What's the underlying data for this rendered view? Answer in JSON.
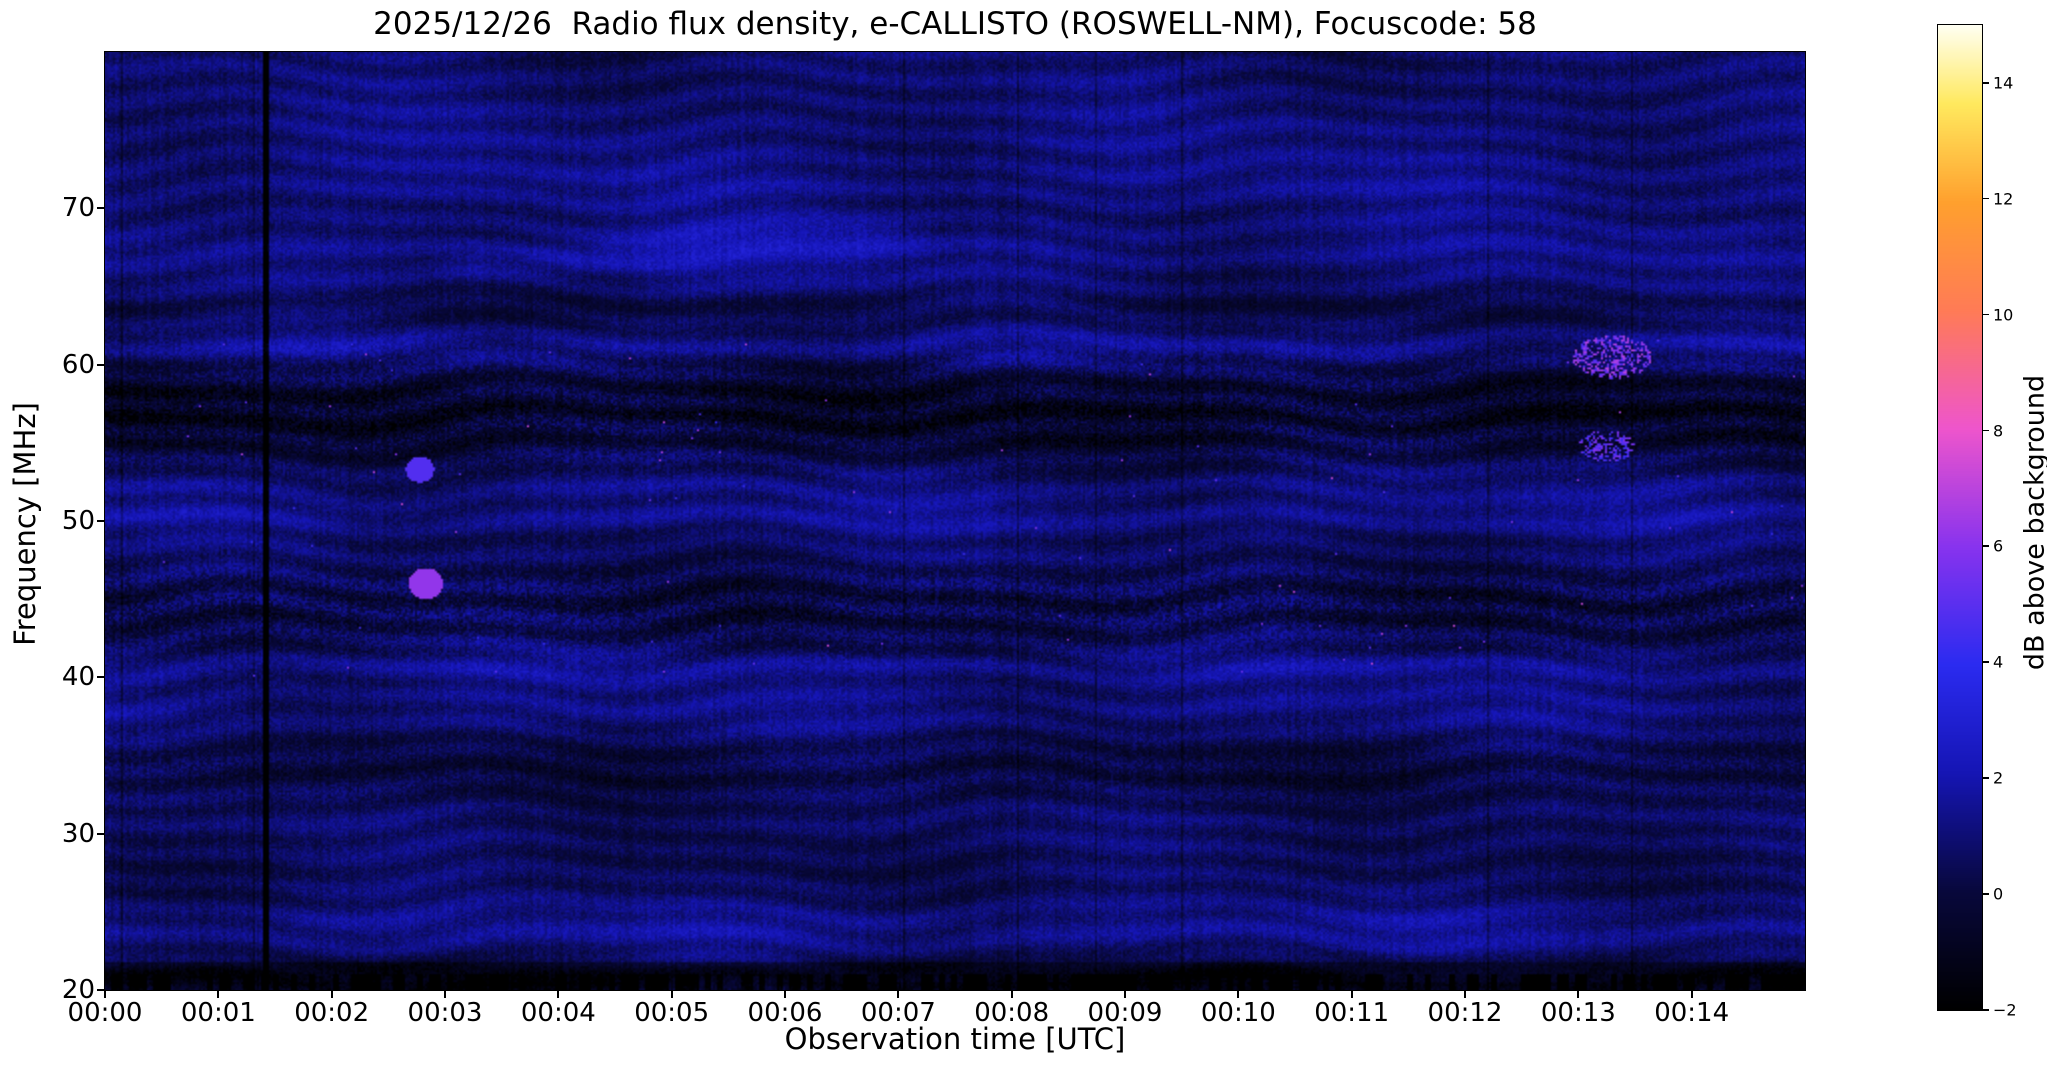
{
  "chart_data": {
    "type": "heatmap",
    "title": "2025/12/26  Radio flux density, e-CALLISTO (ROSWELL-NM), Focuscode: 58",
    "xlabel": "Observation time [UTC]",
    "ylabel": "Frequency [MHz]",
    "x_ticks": [
      "00:00",
      "00:01",
      "00:02",
      "00:03",
      "00:04",
      "00:05",
      "00:06",
      "00:07",
      "00:08",
      "00:09",
      "00:10",
      "00:11",
      "00:12",
      "00:13",
      "00:14"
    ],
    "x_tick_minutes": [
      0,
      1,
      2,
      3,
      4,
      5,
      6,
      7,
      8,
      9,
      10,
      11,
      12,
      13,
      14
    ],
    "x_range_minutes": [
      0,
      15
    ],
    "y_ticks": [
      20,
      30,
      40,
      50,
      60,
      70
    ],
    "y_tick_labels": [
      "20",
      "30",
      "40",
      "50",
      "60",
      "70"
    ],
    "y_range_mhz": [
      20,
      80
    ],
    "grid": false,
    "legend": "none",
    "colorbar": {
      "label": "dB above background",
      "tick_values": [
        -2,
        0,
        2,
        4,
        6,
        8,
        10,
        12,
        14
      ],
      "tick_labels": [
        "−2",
        "0",
        "2",
        "4",
        "6",
        "8",
        "10",
        "12",
        "14"
      ],
      "range": [
        -2,
        15
      ],
      "colormap_stops": [
        {
          "pos": 0.0,
          "hex": "#000000"
        },
        {
          "pos": 0.12,
          "hex": "#08083c"
        },
        {
          "pos": 0.24,
          "hex": "#1515b4"
        },
        {
          "pos": 0.35,
          "hex": "#2b2bf0"
        },
        {
          "pos": 0.47,
          "hex": "#8833ee"
        },
        {
          "pos": 0.59,
          "hex": "#ee55cc"
        },
        {
          "pos": 0.71,
          "hex": "#ff7b56"
        },
        {
          "pos": 0.82,
          "hex": "#ffa02e"
        },
        {
          "pos": 0.92,
          "hex": "#ffe95e"
        },
        {
          "pos": 1.0,
          "hex": "#fffff2"
        }
      ]
    },
    "features": {
      "background_level_db": 0.75,
      "description": "Quiet-sun dark-blue dynamic spectrum with horizontal interference banding, slow wavy ionospheric ripples, fine vertical speckle, sparse pink RFI transients near 40-62 MHz, a dark vertical dropout column near 00:01:25, bright wavy arcs near 66-68 MHz between 00:03 and 00:07, and a near-black strip at 20-21 MHz.",
      "bands": [
        {
          "center": 57.0,
          "width": 3.2,
          "amp": -1.5
        },
        {
          "center": 61.0,
          "width": 1.2,
          "amp": 0.9
        },
        {
          "center": 63.5,
          "width": 1.0,
          "amp": -0.6
        },
        {
          "center": 52.3,
          "width": 1.0,
          "amp": 0.5
        },
        {
          "center": 50.3,
          "width": 0.9,
          "amp": 0.7
        },
        {
          "center": 44.5,
          "width": 2.6,
          "amp": -0.7
        },
        {
          "center": 40.6,
          "width": 1.0,
          "amp": 0.8
        },
        {
          "center": 37.8,
          "width": 1.4,
          "amp": 0.5
        },
        {
          "center": 34.0,
          "width": 2.2,
          "amp": -0.8
        },
        {
          "center": 28.0,
          "width": 2.0,
          "amp": -0.3
        },
        {
          "center": 24.0,
          "width": 1.4,
          "amp": 0.7
        },
        {
          "center": 21.0,
          "width": 0.9,
          "amp": -1.4
        },
        {
          "center": 67.5,
          "width": 1.8,
          "amp": 0.5
        },
        {
          "center": 71.5,
          "width": 1.5,
          "amp": 0.45
        },
        {
          "center": 74.5,
          "width": 2.5,
          "amp": 0.3
        }
      ],
      "speckle_boost_bands": [
        {
          "center": 44.5,
          "width": 2.5,
          "amp": 0.8
        },
        {
          "center": 57.0,
          "width": 3.0,
          "amp": 0.9
        },
        {
          "center": 34.0,
          "width": 2.0,
          "amp": 0.3
        }
      ],
      "dark_column_minute": 1.42,
      "transient_cluster_1": {
        "minute": 13.3,
        "mhz": 60.5
      },
      "transient_cluster_2": {
        "minute": 13.25,
        "mhz": 54.8
      },
      "pink_spot_1": {
        "minute": 2.83,
        "mhz": 46.0
      },
      "pink_spot_2": {
        "minute": 2.78,
        "mhz": 53.3
      },
      "bright_arc_mhz": 67.3,
      "bright_arc_minutes": [
        3.0,
        7.2
      ]
    }
  }
}
